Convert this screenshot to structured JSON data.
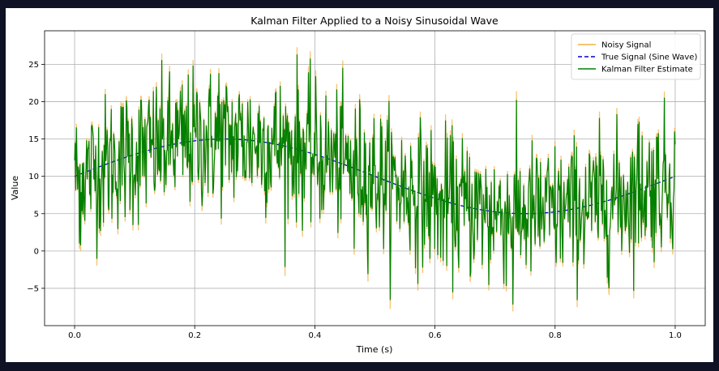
{
  "chart_data": {
    "type": "line",
    "title": "Kalman Filter Applied to a Noisy Sinusoidal Wave",
    "xlabel": "Time (s)",
    "ylabel": "Value",
    "xlim": [
      -0.05,
      1.05
    ],
    "ylim": [
      -10,
      29.5
    ],
    "xticks": [
      0.0,
      0.2,
      0.4,
      0.6,
      0.8,
      1.0
    ],
    "xtick_labels": [
      "0.0",
      "0.2",
      "0.4",
      "0.6",
      "0.8",
      "1.0"
    ],
    "yticks": [
      -5,
      0,
      5,
      10,
      15,
      20,
      25
    ],
    "ytick_labels": [
      "−5",
      "0",
      "5",
      "10",
      "15",
      "20",
      "25"
    ],
    "grid": true,
    "legend_position": "top-right",
    "true_signal": {
      "offset": 10,
      "amplitude": 5,
      "frequency_hz": 1,
      "x_range": [
        0,
        1
      ]
    },
    "sample_count": 1000,
    "noise_std": 5,
    "series": [
      {
        "name": "Noisy Signal",
        "color": "#f5b041",
        "style": "solid"
      },
      {
        "name": "True Signal (Sine Wave)",
        "color": "#0000cc",
        "style": "dashed"
      },
      {
        "name": "Kalman Filter Estimate",
        "color": "#008000",
        "style": "solid"
      }
    ],
    "labeled_points": [
      {
        "x": 0.0,
        "y": 12.3
      },
      {
        "x": 0.008,
        "y": 0.3
      },
      {
        "x": 0.37,
        "y": 27.3
      },
      {
        "x": 0.24,
        "y": 24.5
      },
      {
        "x": 0.465,
        "y": -0.5
      },
      {
        "x": 0.61,
        "y": -1.5
      },
      {
        "x": 0.69,
        "y": -5.3
      },
      {
        "x": 0.73,
        "y": -8.1
      },
      {
        "x": 0.94,
        "y": 18.0
      },
      {
        "x": 1.0,
        "y": 14.6
      }
    ]
  }
}
